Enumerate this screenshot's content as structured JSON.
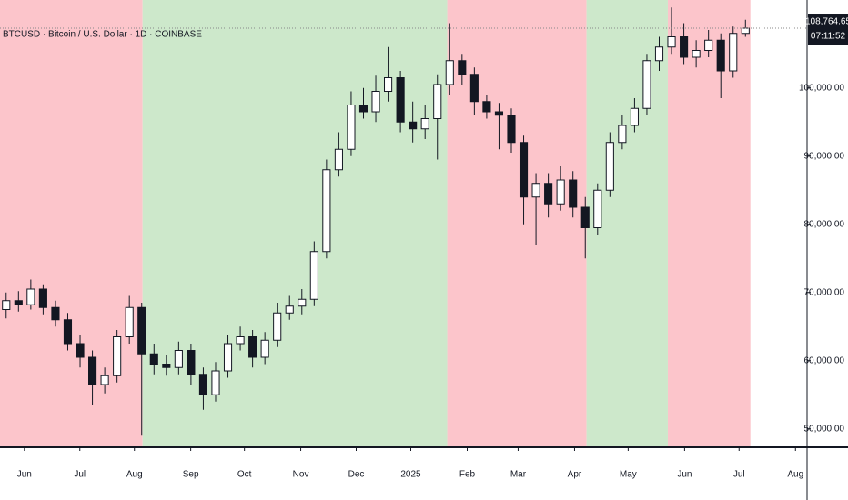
{
  "chart_data": {
    "type": "candlestick",
    "title": "BTCUSD · Bitcoin / U.S. Dollar · 1D · COINBASE",
    "categories": [
      null,
      null,
      null,
      null,
      null,
      null,
      null,
      null,
      null,
      null,
      null,
      null,
      null,
      null,
      null,
      null,
      null,
      null,
      null,
      null,
      null,
      null,
      null,
      null,
      null,
      null,
      null,
      null,
      null,
      null,
      null,
      null,
      null,
      null,
      null,
      null,
      null,
      null,
      null,
      null,
      null,
      null,
      null,
      null,
      null,
      null,
      null,
      null,
      null,
      null,
      null,
      null,
      null,
      null,
      null,
      null,
      null,
      null,
      null,
      null,
      null
    ],
    "open": [
      67500,
      68800,
      68200,
      70500,
      67800,
      66000,
      62500,
      60500,
      56500,
      57800,
      63500,
      67800,
      61000,
      59500,
      59000,
      61500,
      58000,
      55000,
      58500,
      62500,
      63500,
      60500,
      63000,
      67000,
      68000,
      69000,
      76000,
      88000,
      91000,
      97500,
      96500,
      99500,
      101500,
      95000,
      94000,
      95500,
      100500,
      104000,
      102000,
      98000,
      96500,
      96000,
      92000,
      84000,
      86000,
      83000,
      86500,
      82500,
      79500,
      85000,
      92000,
      94500,
      97000,
      104000,
      106000,
      107500,
      104500,
      105500,
      107000,
      102500,
      108000
    ],
    "high": [
      70000,
      70200,
      71900,
      71200,
      68800,
      67000,
      63800,
      61500,
      59000,
      64500,
      69500,
      68500,
      62500,
      60800,
      62800,
      62500,
      59000,
      59800,
      63800,
      65000,
      64500,
      64200,
      68500,
      69500,
      70500,
      77500,
      89500,
      93500,
      99500,
      100000,
      101800,
      106000,
      102500,
      98000,
      97500,
      102000,
      109500,
      105000,
      103000,
      99000,
      97800,
      97000,
      93000,
      87500,
      87500,
      88500,
      87800,
      84000,
      86000,
      93500,
      96000,
      98500,
      105000,
      107500,
      111800,
      109500,
      107000,
      108500,
      108000,
      109000,
      110000
    ],
    "low": [
      66200,
      67200,
      67500,
      66800,
      65000,
      61500,
      59000,
      53500,
      55200,
      56800,
      62500,
      49000,
      58000,
      57800,
      58000,
      56500,
      52800,
      54000,
      57500,
      61500,
      59000,
      59500,
      62000,
      66000,
      66800,
      68000,
      75000,
      87000,
      90000,
      95500,
      95000,
      98000,
      93500,
      92000,
      92500,
      89500,
      99000,
      100500,
      96000,
      95500,
      91000,
      90500,
      80000,
      77000,
      81000,
      82000,
      81000,
      75000,
      78500,
      84000,
      91000,
      93500,
      96000,
      102500,
      105000,
      103500,
      103000,
      104500,
      98500,
      101500,
      107500
    ],
    "close": [
      68800,
      68200,
      70500,
      67800,
      66000,
      62500,
      60500,
      56500,
      57800,
      63500,
      67800,
      61000,
      59500,
      59000,
      61500,
      58000,
      55000,
      58500,
      62500,
      63500,
      60500,
      63000,
      67000,
      68000,
      69000,
      76000,
      88000,
      91000,
      97500,
      96500,
      99500,
      101500,
      95000,
      94000,
      95500,
      100500,
      104000,
      102000,
      98000,
      96500,
      96000,
      92000,
      84000,
      86000,
      83000,
      86500,
      82500,
      79500,
      85000,
      92000,
      94500,
      97000,
      104000,
      106000,
      107500,
      104500,
      105500,
      107000,
      102500,
      108000,
      108765
    ],
    "color": "#131722",
    "regions": [
      {
        "start": -0.5,
        "end": 11.07,
        "color": "#fcc5cb"
      },
      {
        "start": 11.07,
        "end": 35.8,
        "color": "#cde8cb"
      },
      {
        "start": 35.8,
        "end": 47.1,
        "color": "#fcc5cb"
      },
      {
        "start": 47.1,
        "end": 53.7,
        "color": "#cde8cb"
      },
      {
        "start": 53.7,
        "end": 60.4,
        "color": "#fcc5cb"
      }
    ],
    "xlim": [
      -0.5,
      65
    ],
    "xticks": [
      {
        "value": 1.48,
        "label": "Jun"
      },
      {
        "value": 5.98,
        "label": "Jul"
      },
      {
        "value": 10.41,
        "label": "Aug"
      },
      {
        "value": 14.98,
        "label": "Sep"
      },
      {
        "value": 19.34,
        "label": "Oct"
      },
      {
        "value": 23.91,
        "label": "Nov"
      },
      {
        "value": 28.41,
        "label": "Dec"
      },
      {
        "value": 32.84,
        "label": "2025"
      },
      {
        "value": 37.42,
        "label": "Feb"
      },
      {
        "value": 41.55,
        "label": "Mar"
      },
      {
        "value": 46.13,
        "label": "Apr"
      },
      {
        "value": 50.48,
        "label": "May"
      },
      {
        "value": 55.06,
        "label": "Jun"
      },
      {
        "value": 59.48,
        "label": "Jul"
      },
      {
        "value": 64.06,
        "label": "Aug"
      }
    ],
    "ylim": [
      47300,
      112900
    ],
    "yticks": [
      {
        "value": 50000,
        "label": "50,000.00"
      },
      {
        "value": 60000,
        "label": "60,000.00"
      },
      {
        "value": 70000,
        "label": "70,000.00"
      },
      {
        "value": 80000,
        "label": "80,000.00"
      },
      {
        "value": 90000,
        "label": "90,000.00"
      },
      {
        "value": 100000,
        "label": "100,000.00"
      }
    ],
    "last_price": {
      "value": 108764.65,
      "label": "108,764.65"
    },
    "countdown": "07:11:52"
  }
}
